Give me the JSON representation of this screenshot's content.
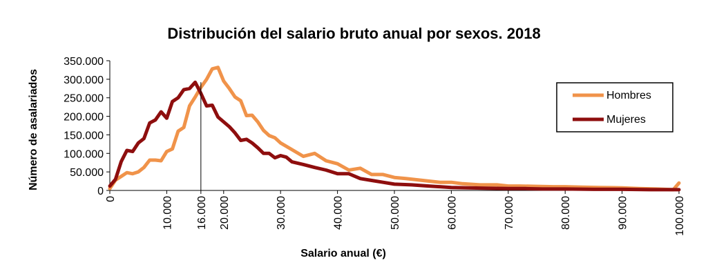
{
  "chart_data": {
    "type": "line",
    "title": "Distribución del salario bruto anual por sexos. 2018",
    "xlabel": "Salario anual (€)",
    "ylabel": "Número de asalariados",
    "xlim": [
      0,
      100000
    ],
    "ylim": [
      0,
      350000
    ],
    "x_ticks": [
      0,
      10000,
      16000,
      20000,
      30000,
      40000,
      50000,
      60000,
      70000,
      80000,
      90000,
      100000
    ],
    "x_tick_labels": [
      "0",
      "10.000",
      "16.000",
      "20.000",
      "30.000",
      "40.000",
      "50.000",
      "60.000",
      "70.000",
      "80.000",
      "90.000",
      "100.000"
    ],
    "y_ticks": [
      0,
      50000,
      100000,
      150000,
      200000,
      250000,
      300000,
      350000
    ],
    "y_tick_labels": [
      "0",
      "50.000",
      "100.000",
      "150.000",
      "200.000",
      "250.000",
      "300.000",
      "350.000"
    ],
    "grid": false,
    "legend_position": "right",
    "marker_line_x": 16000,
    "series": [
      {
        "name": "Hombres",
        "color": "#F0934A",
        "x": [
          0,
          1000,
          2000,
          3000,
          4000,
          5000,
          6000,
          7000,
          8000,
          9000,
          10000,
          11000,
          12000,
          13000,
          14000,
          15000,
          16000,
          17000,
          18000,
          19000,
          20000,
          21000,
          22000,
          23000,
          24000,
          25000,
          26000,
          27000,
          28000,
          29000,
          30000,
          32000,
          34000,
          36000,
          38000,
          40000,
          42000,
          44000,
          46000,
          48000,
          50000,
          52000,
          55000,
          58000,
          60000,
          62000,
          65000,
          68000,
          70000,
          72000,
          75000,
          78000,
          80000,
          83000,
          86000,
          90000,
          93000,
          96000,
          99000,
          100000
        ],
        "values": [
          5000,
          28000,
          38000,
          48000,
          45000,
          50000,
          62000,
          82000,
          82000,
          80000,
          105000,
          112000,
          160000,
          170000,
          228000,
          252000,
          278000,
          300000,
          328000,
          332000,
          295000,
          275000,
          252000,
          242000,
          202000,
          203000,
          185000,
          162000,
          148000,
          142000,
          128000,
          110000,
          92000,
          100000,
          80000,
          72000,
          55000,
          60000,
          43000,
          43000,
          35000,
          32000,
          27000,
          22000,
          22000,
          18000,
          15000,
          15000,
          12000,
          12000,
          11000,
          10000,
          10000,
          9000,
          8000,
          7000,
          5000,
          4000,
          2000,
          20000
        ]
      },
      {
        "name": "Mujeres",
        "color": "#8E0E0E",
        "x": [
          0,
          1000,
          2000,
          3000,
          4000,
          5000,
          6000,
          7000,
          8000,
          9000,
          10000,
          11000,
          12000,
          13000,
          14000,
          15000,
          16000,
          17000,
          18000,
          19000,
          20000,
          21000,
          22000,
          23000,
          24000,
          25000,
          26000,
          27000,
          28000,
          29000,
          30000,
          31000,
          32000,
          34000,
          36000,
          38000,
          40000,
          42000,
          44000,
          46000,
          48000,
          50000,
          53000,
          56000,
          60000,
          63000,
          66000,
          70000,
          73000,
          76000,
          80000,
          85000,
          90000,
          95000,
          100000
        ],
        "values": [
          12000,
          30000,
          78000,
          108000,
          105000,
          128000,
          140000,
          182000,
          190000,
          212000,
          195000,
          240000,
          250000,
          272000,
          275000,
          292000,
          262000,
          228000,
          230000,
          198000,
          185000,
          172000,
          155000,
          135000,
          138000,
          128000,
          115000,
          100000,
          100000,
          88000,
          94000,
          90000,
          77000,
          70000,
          62000,
          55000,
          45000,
          45000,
          32000,
          27000,
          22000,
          17000,
          15000,
          12000,
          8000,
          7000,
          6000,
          5000,
          5000,
          4000,
          4000,
          3000,
          3000,
          2000,
          2000
        ]
      }
    ]
  }
}
